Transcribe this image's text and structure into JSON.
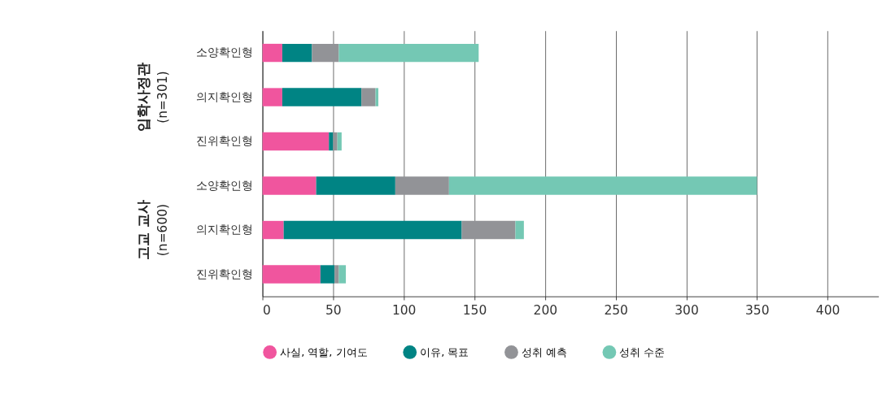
{
  "chart_data": {
    "type": "bar",
    "orientation": "horizontal",
    "stacked": true,
    "categories": [
      "소양확인형",
      "의지확인형",
      "진위확인형",
      "소양확인형",
      "의지확인형",
      "진위확인형"
    ],
    "series": [
      {
        "name": "사실, 역할, 기여도",
        "color": "#f0559e",
        "values": [
          14,
          14,
          47,
          38,
          15,
          41
        ]
      },
      {
        "name": "이유, 목표",
        "color": "#008484",
        "values": [
          21,
          56,
          3,
          56,
          126,
          10
        ]
      },
      {
        "name": "성취 예측",
        "color": "#929397",
        "values": [
          19,
          10,
          3,
          38,
          38,
          3
        ]
      },
      {
        "name": "성취 수준",
        "color": "#74c8b4",
        "values": [
          99,
          2,
          3,
          218,
          6,
          5
        ]
      }
    ],
    "xlim": [
      0,
      436
    ],
    "xticks": [
      0,
      50,
      100,
      150,
      200,
      250,
      300,
      350,
      400
    ],
    "grid": "x",
    "legend": "bottom",
    "annotations": [
      "입학사정관\n(n=301)",
      "고교 교사\n(n=600)"
    ]
  }
}
